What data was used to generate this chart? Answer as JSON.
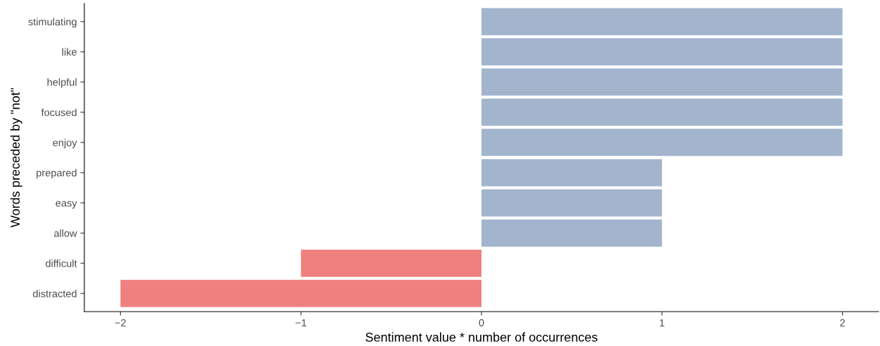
{
  "chart_data": {
    "type": "bar",
    "orientation": "horizontal",
    "xlabel": "Sentiment value * number of occurrences",
    "ylabel": "Words preceded by \"not\"",
    "categories": [
      "stimulating",
      "like",
      "helpful",
      "focused",
      "enjoy",
      "prepared",
      "easy",
      "allow",
      "difficult",
      "distracted"
    ],
    "values": [
      2,
      2,
      2,
      2,
      2,
      1,
      1,
      1,
      -1,
      -2
    ],
    "colors": [
      "#a3b5cd",
      "#a3b5cd",
      "#a3b5cd",
      "#a3b5cd",
      "#a3b5cd",
      "#a3b5cd",
      "#a3b5cd",
      "#a3b5cd",
      "#f08080",
      "#f08080"
    ],
    "xlim": [
      -2.2,
      2.2
    ],
    "xticks": [
      {
        "value": -2,
        "label": "−2"
      },
      {
        "value": -1,
        "label": "−1"
      },
      0,
      1,
      2
    ],
    "grid": false,
    "legend": false
  }
}
